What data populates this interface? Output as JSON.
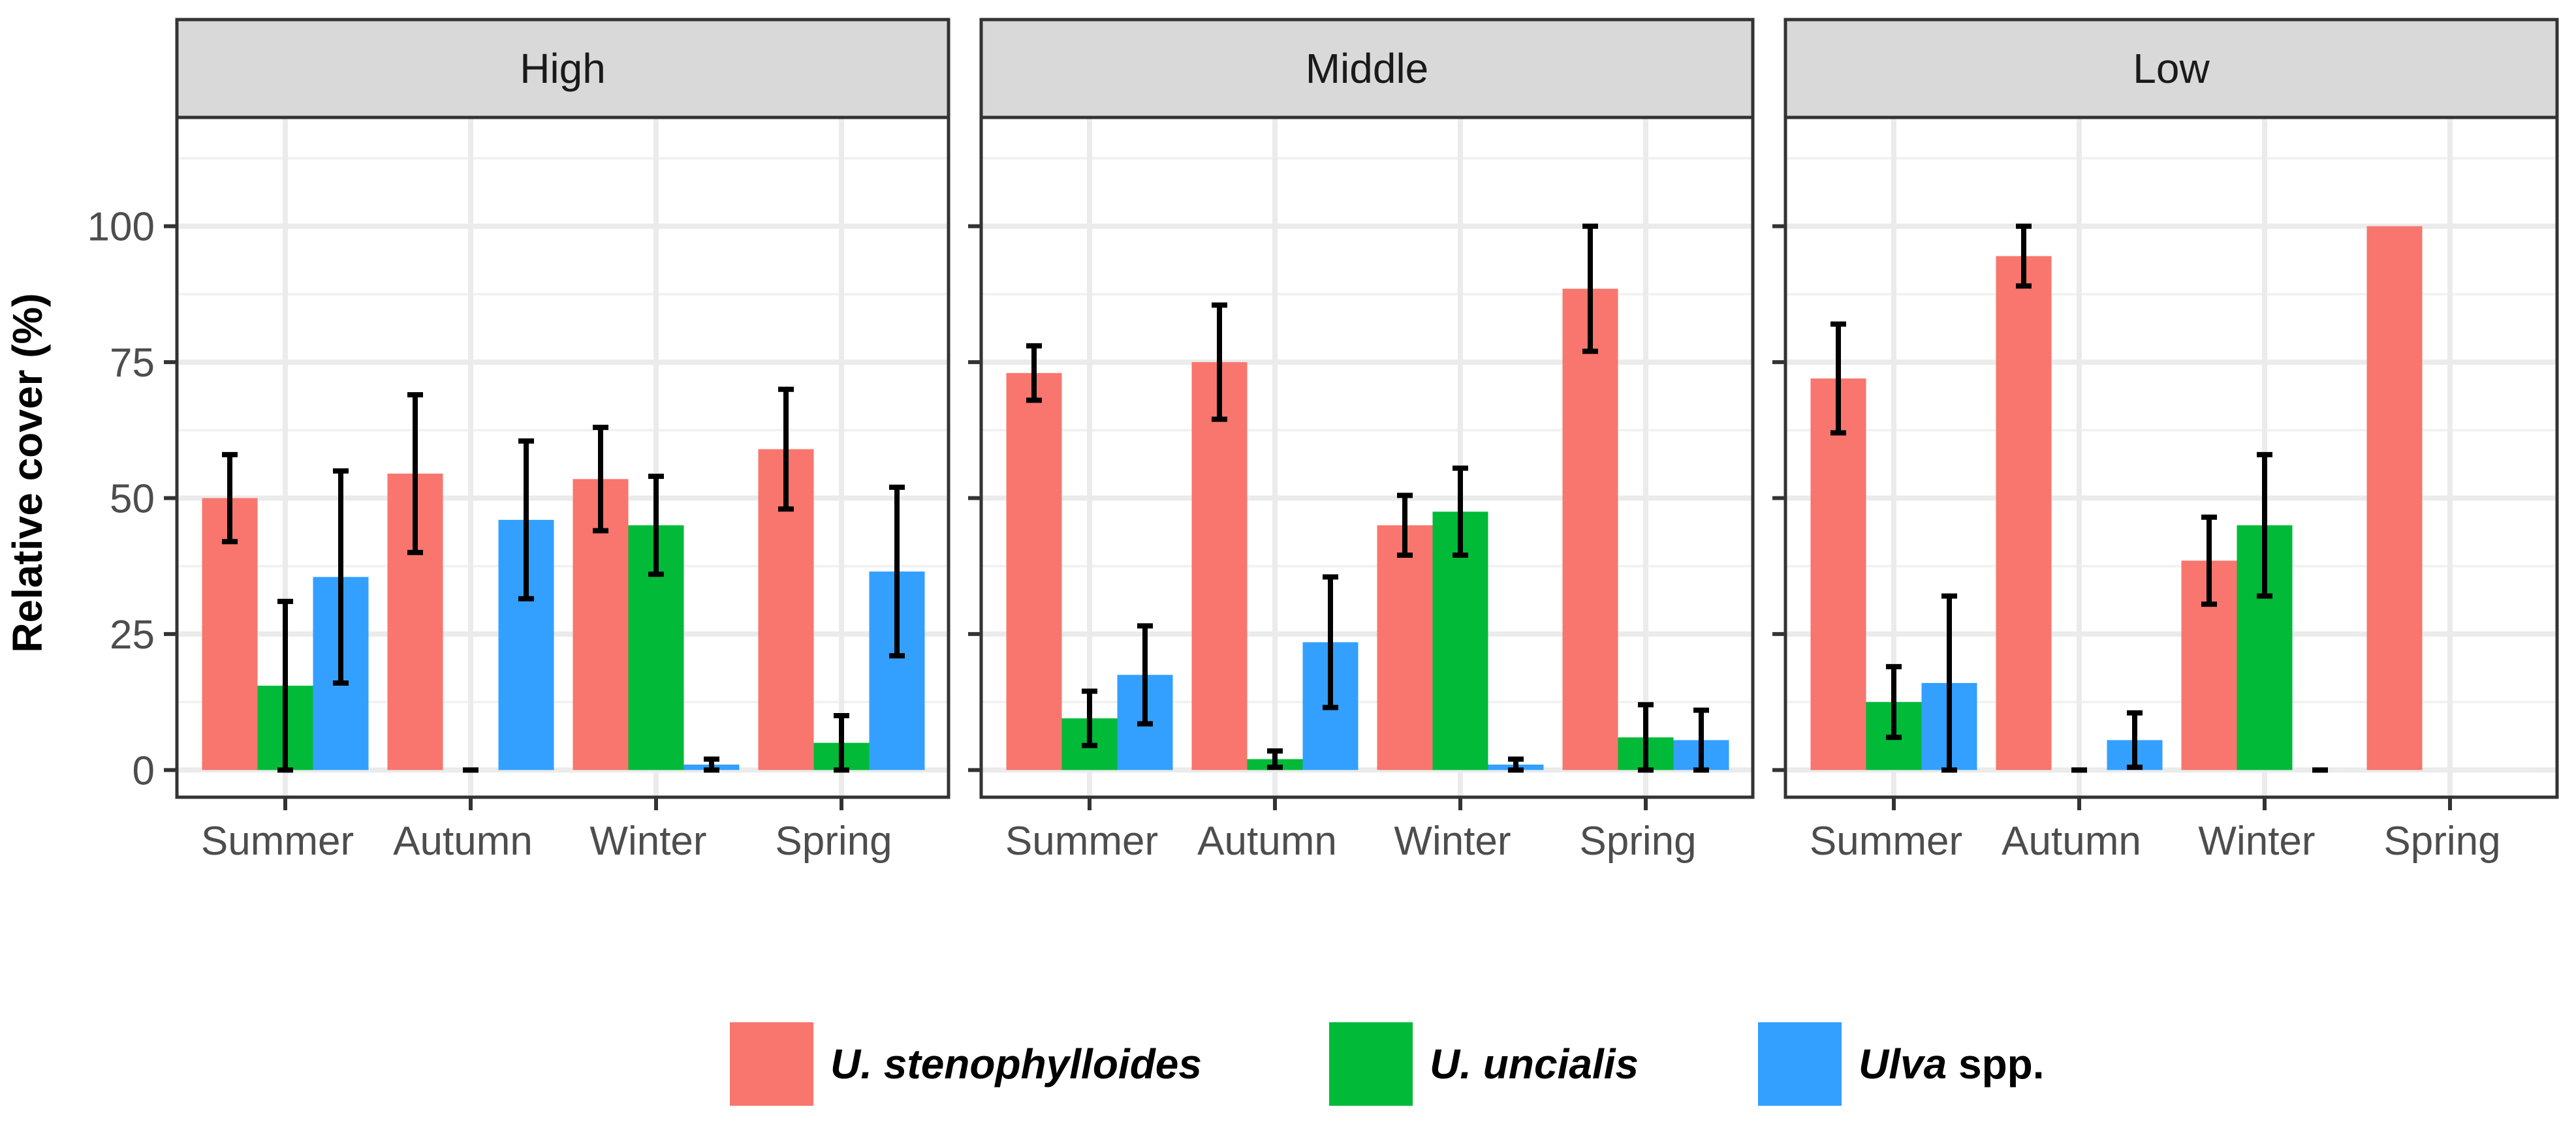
{
  "chart_data": {
    "type": "bar",
    "ylabel": "Relative cover (%)",
    "xlabel": "",
    "ylim": [
      -5,
      120
    ],
    "yticks": [
      0,
      25,
      50,
      75,
      100
    ],
    "categories": [
      "Summer",
      "Autumn",
      "Winter",
      "Spring"
    ],
    "colors": {
      "U. stenophylloides": "#F8766D",
      "U. uncialis": "#00BA38",
      "Ulva spp.": "#33A0FF"
    },
    "legend": {
      "placement": "bottom",
      "entries": [
        {
          "series": "U. stenophylloides",
          "parts": [
            {
              "text": "U. stenophylloides",
              "italic": true
            }
          ]
        },
        {
          "series": "U. uncialis",
          "parts": [
            {
              "text": "U. uncialis",
              "italic": true
            }
          ]
        },
        {
          "series": "Ulva spp.",
          "parts": [
            {
              "text": "Ulva",
              "italic": true
            },
            {
              "text": " spp.",
              "italic": false
            }
          ]
        }
      ]
    },
    "panels": [
      {
        "title": "High",
        "series": [
          {
            "name": "U. stenophylloides",
            "values": [
              50,
              54.5,
              53.5,
              59
            ],
            "errors": [
              8,
              14.5,
              9.5,
              11
            ]
          },
          {
            "name": "U. uncialis",
            "values": [
              15.5,
              0,
              45,
              5
            ],
            "errors": [
              15.5,
              0,
              9,
              5
            ]
          },
          {
            "name": "Ulva spp.",
            "values": [
              35.5,
              46,
              1,
              36.5
            ],
            "errors": [
              19.5,
              14.5,
              1,
              15.5
            ]
          }
        ]
      },
      {
        "title": "Middle",
        "series": [
          {
            "name": "U. stenophylloides",
            "values": [
              73,
              75,
              45,
              88.5
            ],
            "errors": [
              5,
              10.5,
              5.5,
              11.5
            ]
          },
          {
            "name": "U. uncialis",
            "values": [
              9.5,
              2,
              47.5,
              6
            ],
            "errors": [
              5,
              1.5,
              8,
              6
            ]
          },
          {
            "name": "Ulva spp.",
            "values": [
              17.5,
              23.5,
              1,
              5.5
            ],
            "errors": [
              9,
              12,
              1,
              5.5
            ]
          }
        ]
      },
      {
        "title": "Low",
        "series": [
          {
            "name": "U. stenophylloides",
            "values": [
              72,
              94.5,
              38.5,
              100
            ],
            "errors": [
              10,
              5.5,
              8,
              0
            ]
          },
          {
            "name": "U. uncialis",
            "values": [
              12.5,
              0,
              45,
              0
            ],
            "errors": [
              6.5,
              0,
              13,
              0
            ]
          },
          {
            "name": "Ulva spp.",
            "values": [
              16,
              5.5,
              0,
              0
            ],
            "errors": [
              16,
              5,
              0,
              0
            ]
          }
        ]
      }
    ]
  }
}
